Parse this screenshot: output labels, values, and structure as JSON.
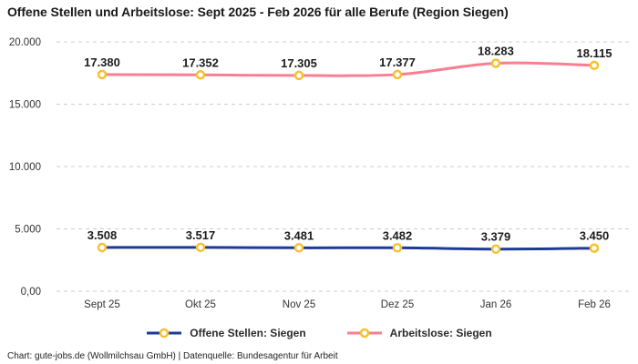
{
  "title": "Offene Stellen und Arbeitslose: Sept 2025 - Feb 2026 für alle Berufe (Region Siegen)",
  "footer": "Chart: gute-jobs.de (Wollmilchsau GmbH) | Datenquelle: Bundesagentur für Arbeit",
  "colors": {
    "offene_stellen_line": "#1e3a99",
    "arbeitslose_line": "#f87f92",
    "marker_ring": "#f6c12f",
    "marker_fill": "#ffffff",
    "gridline": "#cccccc",
    "title_text": "#1a1a1a",
    "axis_text": "#333333",
    "value_text": "#1c1c1c"
  },
  "chart_data": {
    "type": "line",
    "title": "Offene Stellen und Arbeitslose: Sept 2025 - Feb 2026 für alle Berufe (Region Siegen)",
    "categories": [
      "Sept 25",
      "Okt 25",
      "Nov 25",
      "Dez 25",
      "Jan 26",
      "Feb 26"
    ],
    "series": [
      {
        "name": "Offene Stellen: Siegen",
        "color": "#1e3a99",
        "values": [
          3508,
          3517,
          3481,
          3482,
          3379,
          3450
        ],
        "labels": [
          "3.508",
          "3.517",
          "3.481",
          "3.482",
          "3.379",
          "3.450"
        ]
      },
      {
        "name": "Arbeitslose: Siegen",
        "color": "#f87f92",
        "values": [
          17380,
          17352,
          17305,
          17377,
          18283,
          18115
        ],
        "labels": [
          "17.380",
          "17.352",
          "17.305",
          "17.377",
          "18.283",
          "18.115"
        ]
      }
    ],
    "y_ticks": [
      {
        "value": 0,
        "label": "0,00"
      },
      {
        "value": 5000,
        "label": "5.000"
      },
      {
        "value": 10000,
        "label": "10.000"
      },
      {
        "value": 15000,
        "label": "15.000"
      },
      {
        "value": 20000,
        "label": "20.000"
      }
    ],
    "ylim": [
      0,
      20000
    ],
    "grid": "horizontal-dashed",
    "marker": "yellow-ring",
    "legend_position": "bottom",
    "line_style": "smooth"
  }
}
